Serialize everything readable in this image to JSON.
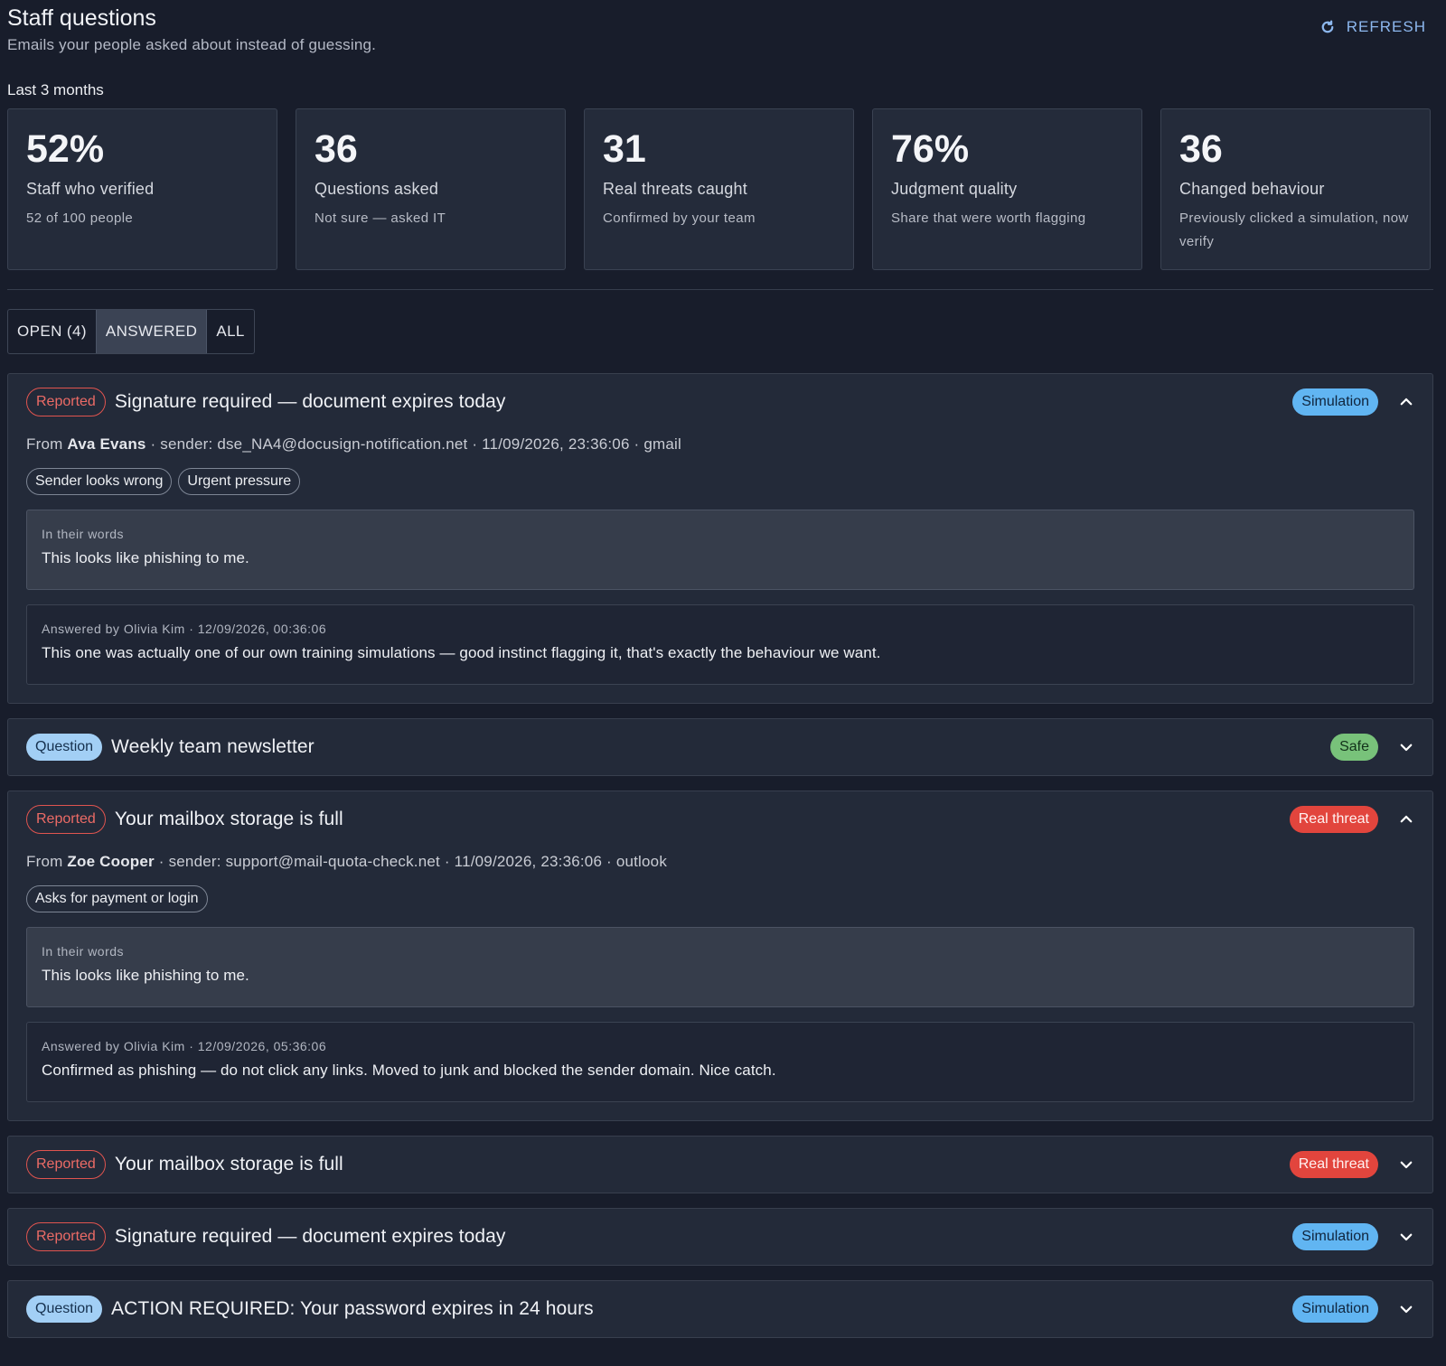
{
  "header": {
    "title": "Staff questions",
    "subtitle": "Emails your people asked about instead of guessing.",
    "refresh_label": "REFRESH"
  },
  "period": "Last 3 months",
  "stats": [
    {
      "value": "52%",
      "label": "Staff who verified",
      "sub": "52 of 100 people"
    },
    {
      "value": "36",
      "label": "Questions asked",
      "sub": "Not sure — asked IT"
    },
    {
      "value": "31",
      "label": "Real threats caught",
      "sub": "Confirmed by your team"
    },
    {
      "value": "76%",
      "label": "Judgment quality",
      "sub": "Share that were worth flagging"
    },
    {
      "value": "36",
      "label": "Changed behaviour",
      "sub": "Previously clicked a simulation, now verify"
    }
  ],
  "tabs": [
    "OPEN (4)",
    "ANSWERED",
    "ALL"
  ],
  "items": [
    {
      "type": "Reported",
      "title": "Signature required — document expires today",
      "verdict": "Simulation",
      "from_prefix": "From",
      "from_name": "Ava Evans",
      "meta_rest": "· sender: dse_NA4@docusign-notification.net · 11/09/2026, 23:36:06 · gmail",
      "tags": [
        "Sender looks wrong",
        "Urgent pressure"
      ],
      "words_label": "In their words",
      "words_text": "This looks like phishing to me.",
      "answer_label": "Answered by Olivia Kim · 12/09/2026, 00:36:06",
      "answer_text": "This one was actually one of our own training simulations — good instinct flagging it, that's exactly the behaviour we want."
    },
    {
      "type": "Question",
      "title": "Weekly team newsletter",
      "verdict": "Safe"
    },
    {
      "type": "Reported",
      "title": "Your mailbox storage is full",
      "verdict": "Real threat",
      "from_prefix": "From",
      "from_name": "Zoe Cooper",
      "meta_rest": "· sender: support@mail-quota-check.net · 11/09/2026, 23:36:06 · outlook",
      "tags": [
        "Asks for payment or login"
      ],
      "words_label": "In their words",
      "words_text": "This looks like phishing to me.",
      "answer_label": "Answered by Olivia Kim · 12/09/2026, 05:36:06",
      "answer_text": "Confirmed as phishing — do not click any links. Moved to junk and blocked the sender domain. Nice catch."
    },
    {
      "type": "Reported",
      "title": "Your mailbox storage is full",
      "verdict": "Real threat"
    },
    {
      "type": "Reported",
      "title": "Signature required — document expires today",
      "verdict": "Simulation"
    },
    {
      "type": "Question",
      "title": "ACTION REQUIRED: Your password expires in 24 hours",
      "verdict": "Simulation"
    }
  ],
  "colors": {
    "background": "#181d2b",
    "card": "#232a39",
    "accent": "#8db8ef",
    "reported": "#e0544f",
    "simulation": "#61b5f2",
    "safe": "#78c27a",
    "threat": "#e2453d"
  },
  "icons": {
    "refresh": "refresh-icon",
    "expanded": "chevron-up-icon",
    "collapsed": "chevron-down-icon"
  }
}
